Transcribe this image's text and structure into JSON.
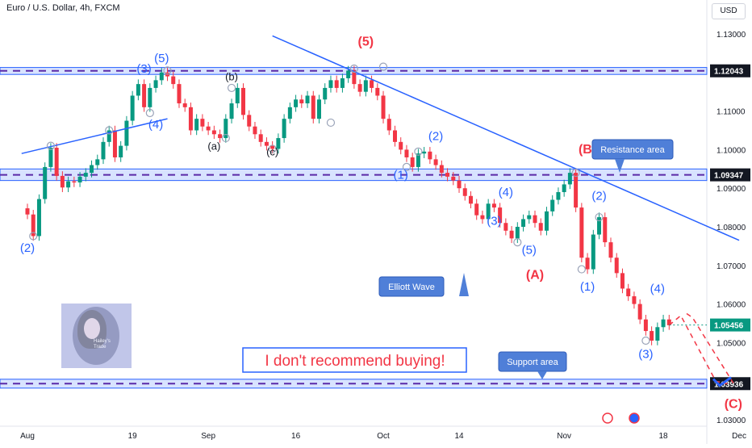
{
  "header": {
    "title": "Euro / U.S. Dollar, 4h, FXCM",
    "currency": "USD"
  },
  "logo": {
    "text_line1": "Hailey's",
    "text_line2": "Trade"
  },
  "chart_data": {
    "type": "line",
    "title": "Euro / U.S. Dollar, 4h, FXCM",
    "ylim": [
      1.025,
      1.135
    ],
    "price_ticks": [
      1.03,
      1.04,
      1.05,
      1.06,
      1.07,
      1.08,
      1.09,
      1.1,
      1.11,
      1.12,
      1.13
    ],
    "price_tick_labels": [
      "1.03000",
      "1.04000",
      "1.05000",
      "1.06000",
      "1.07000",
      "1.08000",
      "1.09000",
      "1.10000",
      "1.11000",
      "1.12000",
      "1.13000"
    ],
    "time_ticks": [
      {
        "label": "Aug",
        "day": 0
      },
      {
        "label": "19",
        "day": 18
      },
      {
        "label": "Sep",
        "day": 31
      },
      {
        "label": "16",
        "day": 46
      },
      {
        "label": "Oct",
        "day": 61
      },
      {
        "label": "14",
        "day": 74
      },
      {
        "label": "Nov",
        "day": 92
      },
      {
        "label": "18",
        "day": 109
      },
      {
        "label": "Dec",
        "day": 122
      }
    ],
    "price_series": [
      [
        -1,
        1.0848
      ],
      [
        0,
        1.0832
      ],
      [
        1,
        1.0776
      ],
      [
        2,
        1.0872
      ],
      [
        3,
        1.0955
      ],
      [
        4,
        1.1005
      ],
      [
        5,
        1.0932
      ],
      [
        6,
        1.0902
      ],
      [
        7,
        1.0918
      ],
      [
        8,
        1.0915
      ],
      [
        9,
        1.093
      ],
      [
        10,
        1.094
      ],
      [
        11,
        1.096
      ],
      [
        12,
        1.0975
      ],
      [
        13,
        1.102
      ],
      [
        14,
        1.105
      ],
      [
        15,
        1.098
      ],
      [
        16,
        1.101
      ],
      [
        17,
        1.1075
      ],
      [
        18,
        1.114
      ],
      [
        19,
        1.117
      ],
      [
        20,
        1.111
      ],
      [
        21,
        1.116
      ],
      [
        22,
        1.118
      ],
      [
        23,
        1.12
      ],
      [
        24,
        1.119
      ],
      [
        25,
        1.117
      ],
      [
        26,
        1.112
      ],
      [
        27,
        1.111
      ],
      [
        28,
        1.105
      ],
      [
        29,
        1.108
      ],
      [
        30,
        1.106
      ],
      [
        31,
        1.105
      ],
      [
        32,
        1.104
      ],
      [
        33,
        1.103
      ],
      [
        34,
        1.108
      ],
      [
        35,
        1.112
      ],
      [
        36,
        1.116
      ],
      [
        37,
        1.109
      ],
      [
        38,
        1.106
      ],
      [
        39,
        1.104
      ],
      [
        40,
        1.102
      ],
      [
        41,
        1.101
      ],
      [
        42,
        1.1002
      ],
      [
        43,
        1.103
      ],
      [
        44,
        1.108
      ],
      [
        45,
        1.111
      ],
      [
        46,
        1.113
      ],
      [
        47,
        1.112
      ],
      [
        48,
        1.114
      ],
      [
        49,
        1.108
      ],
      [
        50,
        1.113
      ],
      [
        51,
        1.116
      ],
      [
        52,
        1.118
      ],
      [
        53,
        1.116
      ],
      [
        54,
        1.1185
      ],
      [
        55,
        1.1205
      ],
      [
        56,
        1.117
      ],
      [
        57,
        1.115
      ],
      [
        58,
        1.118
      ],
      [
        59,
        1.116
      ],
      [
        60,
        1.114
      ],
      [
        61,
        1.108
      ],
      [
        62,
        1.105
      ],
      [
        63,
        1.102
      ],
      [
        64,
        1.1
      ],
      [
        65,
        1.098
      ],
      [
        66,
        1.0955
      ],
      [
        67,
        1.099
      ],
      [
        68,
        1.0995
      ],
      [
        69,
        1.0975
      ],
      [
        70,
        1.096
      ],
      [
        71,
        1.094
      ],
      [
        72,
        1.093
      ],
      [
        73,
        1.092
      ],
      [
        74,
        1.09
      ],
      [
        75,
        1.088
      ],
      [
        76,
        1.086
      ],
      [
        77,
        1.083
      ],
      [
        78,
        1.082
      ],
      [
        79,
        1.086
      ],
      [
        80,
        1.085
      ],
      [
        81,
        1.081
      ],
      [
        82,
        1.079
      ],
      [
        83,
        1.077
      ],
      [
        84,
        1.08
      ],
      [
        85,
        1.082
      ],
      [
        86,
        1.083
      ],
      [
        87,
        1.081
      ],
      [
        88,
        1.079
      ],
      [
        89,
        1.084
      ],
      [
        90,
        1.087
      ],
      [
        91,
        1.089
      ],
      [
        92,
        1.091
      ],
      [
        93,
        1.094
      ],
      [
        94,
        1.085
      ],
      [
        95,
        1.072
      ],
      [
        96,
        1.069
      ],
      [
        97,
        1.078
      ],
      [
        98,
        1.0825
      ],
      [
        99,
        1.076
      ],
      [
        100,
        1.072
      ],
      [
        101,
        1.068
      ],
      [
        102,
        1.064
      ],
      [
        103,
        1.062
      ],
      [
        104,
        1.06
      ],
      [
        105,
        1.056
      ],
      [
        106,
        1.053
      ],
      [
        107,
        1.0505
      ],
      [
        108,
        1.054
      ],
      [
        109,
        1.056
      ],
      [
        110,
        1.0545
      ]
    ],
    "projection": [
      [
        110,
        1.0545
      ],
      [
        112,
        1.057
      ],
      [
        118,
        1.04
      ],
      [
        120,
        1.0393
      ]
    ],
    "projection_box": [
      [
        111,
        1.052
      ],
      [
        118,
        1.038
      ]
    ],
    "levels": [
      {
        "name": "resistance-top",
        "price": 1.12043,
        "label": "1.12043",
        "band": [
          1.1195,
          1.1213
        ]
      },
      {
        "name": "resistance-mid",
        "price": 1.09347,
        "label": "1.09347",
        "band": [
          1.092,
          1.095
        ]
      },
      {
        "name": "support",
        "price": 1.03936,
        "label": "1.03936",
        "band": [
          1.0382,
          1.0405
        ]
      }
    ],
    "current_price": {
      "price": 1.05456,
      "label": "1.05456"
    },
    "trendlines": [
      {
        "name": "upper-trendline",
        "from": [
          -1,
          1.099
        ],
        "to": [
          24,
          1.108
        ]
      },
      {
        "name": "descending-trendline",
        "from": [
          42,
          1.1295
        ],
        "to": [
          122,
          1.0765
        ]
      }
    ],
    "wave_labels": [
      {
        "text": "(2)",
        "day": 0,
        "price": 1.0735,
        "color": "blue"
      },
      {
        "text": "(3)",
        "day": 20,
        "price": 1.12,
        "color": "blue"
      },
      {
        "text": "(5)",
        "day": 23,
        "price": 1.1227,
        "color": "blue"
      },
      {
        "text": "(4)",
        "day": 22,
        "price": 1.1055,
        "color": "blue"
      },
      {
        "text": "(b)",
        "day": 35,
        "price": 1.118,
        "color": "black"
      },
      {
        "text": "(a)",
        "day": 32,
        "price": 1.1,
        "color": "black"
      },
      {
        "text": "(c)",
        "day": 42,
        "price": 1.0985,
        "color": "black"
      },
      {
        "text": "(5)",
        "day": 58,
        "price": 1.127,
        "color": "red"
      },
      {
        "text": "(1)",
        "day": 64,
        "price": 1.0925,
        "color": "blue"
      },
      {
        "text": "(2)",
        "day": 70,
        "price": 1.1025,
        "color": "blue"
      },
      {
        "text": "(4)",
        "day": 82,
        "price": 1.088,
        "color": "blue"
      },
      {
        "text": "(3)",
        "day": 80,
        "price": 1.0805,
        "color": "blue"
      },
      {
        "text": "(5)",
        "day": 86,
        "price": 1.073,
        "color": "blue"
      },
      {
        "text": "(A)",
        "day": 87,
        "price": 1.0665,
        "color": "red"
      },
      {
        "text": "(B)",
        "day": 96,
        "price": 1.099,
        "color": "red"
      },
      {
        "text": "(2)",
        "day": 98,
        "price": 1.087,
        "color": "blue"
      },
      {
        "text": "(1)",
        "day": 96,
        "price": 1.0635,
        "color": "blue"
      },
      {
        "text": "(4)",
        "day": 108,
        "price": 1.063,
        "color": "blue"
      },
      {
        "text": "(3)",
        "day": 106,
        "price": 1.046,
        "color": "blue"
      },
      {
        "text": "(C)",
        "day": 121,
        "price": 1.033,
        "color": "red"
      }
    ],
    "pivot_circles": [
      [
        1,
        1.0776
      ],
      [
        4,
        1.101
      ],
      [
        14,
        1.105
      ],
      [
        21,
        1.1095
      ],
      [
        24,
        1.1205
      ],
      [
        34,
        1.103
      ],
      [
        35,
        1.116
      ],
      [
        42,
        1.1002
      ],
      [
        52,
        1.107
      ],
      [
        56,
        1.121
      ],
      [
        61,
        1.1215
      ],
      [
        65,
        1.0955
      ],
      [
        67,
        1.0995
      ],
      [
        84,
        1.076
      ],
      [
        94,
        1.094
      ],
      [
        95,
        1.069
      ],
      [
        98,
        1.0825
      ],
      [
        106,
        1.0505
      ]
    ],
    "annotations": [
      {
        "name": "resistance-area-callout",
        "text": "Resistance area"
      },
      {
        "name": "elliott-wave-callout",
        "text": "Elliott Wave"
      },
      {
        "name": "support-area-callout",
        "text": "Support area"
      },
      {
        "name": "warning-box",
        "text": "I don't recommend buying!"
      }
    ]
  },
  "colors": {
    "blue": "#2962ff",
    "band_fill": "#2962ff",
    "dashed": "#5b2aa8",
    "red": "#f23645",
    "green": "#089981",
    "candle_up": "#089981",
    "candle_down": "#f23645",
    "callout_bg": "#4f7fd8",
    "axis_text": "#131722",
    "black_label": "#131722"
  }
}
